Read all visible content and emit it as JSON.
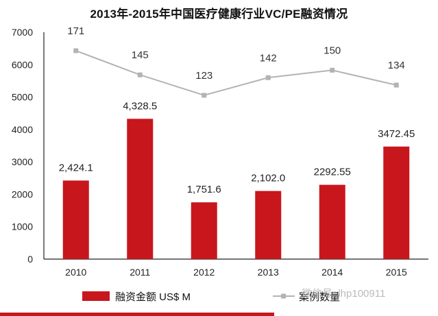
{
  "chart_data": {
    "type": "bar",
    "title": "2013年-2015年中国医疗健康行业VC/PE融资情况",
    "categories": [
      "2010",
      "2011",
      "2012",
      "2013",
      "2014",
      "2015"
    ],
    "ylim": [
      0,
      7000
    ],
    "yticks": [
      "0",
      "1000",
      "2000",
      "3000",
      "4000",
      "5000",
      "6000",
      "7000"
    ],
    "series": [
      {
        "name": "融资金额 US$ M",
        "type": "bar",
        "values": [
          2424.1,
          4328.5,
          1751.6,
          2102.0,
          2292.55,
          3472.45
        ],
        "labels": [
          "2,424.1",
          "4,328.5",
          "1,751.6",
          "2,102.0",
          "2292.55",
          "3472.45"
        ]
      },
      {
        "name": "案例数量",
        "type": "line",
        "values": [
          171,
          145,
          123,
          142,
          150,
          134
        ],
        "labels": [
          "171",
          "145",
          "123",
          "142",
          "150",
          "134"
        ]
      }
    ],
    "legend_position": "bottom",
    "colors": {
      "bar": "#c8161d",
      "line": "#b3b3b3",
      "axis": "#222222"
    }
  },
  "watermark": "微信号: lhp100911"
}
